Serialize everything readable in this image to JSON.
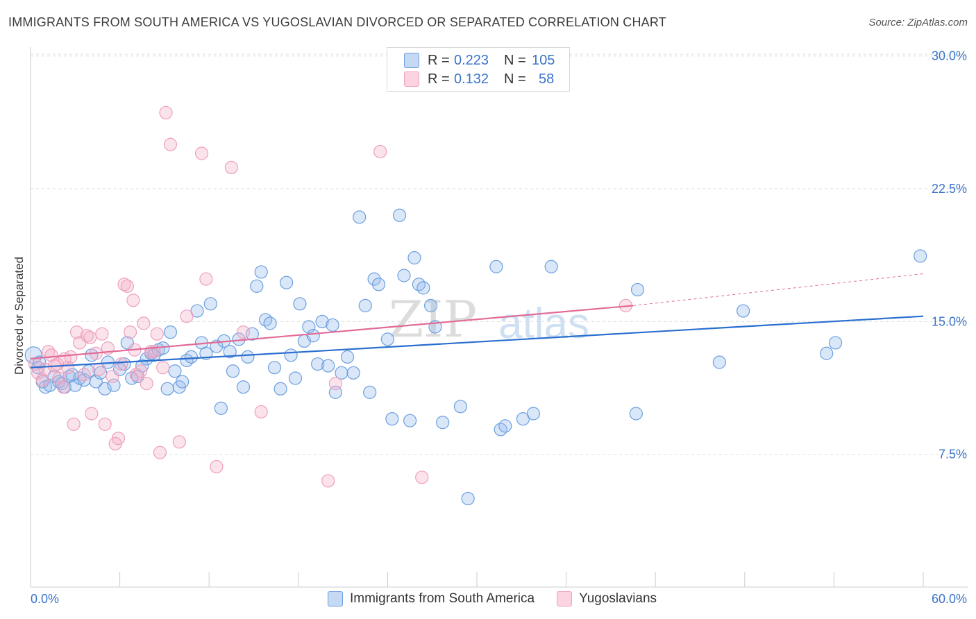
{
  "title": "IMMIGRANTS FROM SOUTH AMERICA VS YUGOSLAVIAN DIVORCED OR SEPARATED CORRELATION CHART",
  "source": "Source: ZipAtlas.com",
  "watermark": {
    "zip": "ZIP",
    "atlas": "atlas"
  },
  "legend": {
    "r_label": "R =",
    "n_label": "N =",
    "series1": {
      "r": "0.223",
      "n": "105",
      "color": "#6b9fe0"
    },
    "series2": {
      "r": "0.132",
      "n": "58",
      "color": "#f0a0bc"
    }
  },
  "colors": {
    "blue_line": "#2a6fcf",
    "pink_line": "#e26a96",
    "axis_text": "#3a73c9",
    "grid": "#dddddd"
  },
  "chart_data": {
    "type": "scatter",
    "xlabel": "",
    "ylabel": "Divorced or Separated",
    "xlim": [
      0,
      60
    ],
    "ylim": [
      0,
      31
    ],
    "x_ticks": [
      "0.0%",
      "60.0%"
    ],
    "y_ticks": [
      {
        "value": 7.5,
        "label": "7.5%"
      },
      {
        "value": 15.0,
        "label": "15.0%"
      },
      {
        "value": 22.5,
        "label": "22.5%"
      },
      {
        "value": 30.0,
        "label": "30.0%"
      }
    ],
    "grid": true,
    "series": [
      {
        "name": "Immigrants from South America",
        "color": "#6b9fe0",
        "trend": {
          "x0": 0,
          "y0": 12.4,
          "x1": 60,
          "y1": 15.3
        },
        "points": [
          [
            0.2,
            13.1
          ],
          [
            0.5,
            12.4
          ],
          [
            0.8,
            11.6
          ],
          [
            1.0,
            11.3
          ],
          [
            1.3,
            11.4
          ],
          [
            1.6,
            11.9
          ],
          [
            1.9,
            11.6
          ],
          [
            2.1,
            11.5
          ],
          [
            2.3,
            11.3
          ],
          [
            2.6,
            11.9
          ],
          [
            3.0,
            11.4
          ],
          [
            3.3,
            11.8
          ],
          [
            3.6,
            11.7
          ],
          [
            3.9,
            12.2
          ],
          [
            4.1,
            13.1
          ],
          [
            4.4,
            11.6
          ],
          [
            4.7,
            12.1
          ],
          [
            5.0,
            11.2
          ],
          [
            5.2,
            12.7
          ],
          [
            5.6,
            11.4
          ],
          [
            6.0,
            12.3
          ],
          [
            6.3,
            12.6
          ],
          [
            6.5,
            13.8
          ],
          [
            6.8,
            11.8
          ],
          [
            7.2,
            11.9
          ],
          [
            7.5,
            12.5
          ],
          [
            7.8,
            12.9
          ],
          [
            8.1,
            13.2
          ],
          [
            8.3,
            13.1
          ],
          [
            8.6,
            13.4
          ],
          [
            8.9,
            13.5
          ],
          [
            9.2,
            11.2
          ],
          [
            9.4,
            14.4
          ],
          [
            9.7,
            12.2
          ],
          [
            10.0,
            11.3
          ],
          [
            10.2,
            11.6
          ],
          [
            10.5,
            12.8
          ],
          [
            10.8,
            13.0
          ],
          [
            11.2,
            15.6
          ],
          [
            11.5,
            13.8
          ],
          [
            11.8,
            13.2
          ],
          [
            12.1,
            16.0
          ],
          [
            12.5,
            13.6
          ],
          [
            12.8,
            10.1
          ],
          [
            13.0,
            13.9
          ],
          [
            13.4,
            13.3
          ],
          [
            13.6,
            12.2
          ],
          [
            14.0,
            14.0
          ],
          [
            14.3,
            11.3
          ],
          [
            14.6,
            13.0
          ],
          [
            14.9,
            14.3
          ],
          [
            15.2,
            17.0
          ],
          [
            15.5,
            17.8
          ],
          [
            15.8,
            15.1
          ],
          [
            16.1,
            14.9
          ],
          [
            16.4,
            12.4
          ],
          [
            16.8,
            11.2
          ],
          [
            17.2,
            17.2
          ],
          [
            17.5,
            13.1
          ],
          [
            17.8,
            11.8
          ],
          [
            18.1,
            16.0
          ],
          [
            18.4,
            13.9
          ],
          [
            18.7,
            14.7
          ],
          [
            19.0,
            14.2
          ],
          [
            19.3,
            12.6
          ],
          [
            19.6,
            15.0
          ],
          [
            20.0,
            12.5
          ],
          [
            20.3,
            14.8
          ],
          [
            20.5,
            11.0
          ],
          [
            20.9,
            12.1
          ],
          [
            21.3,
            13.0
          ],
          [
            21.7,
            12.1
          ],
          [
            22.1,
            20.9
          ],
          [
            22.5,
            15.9
          ],
          [
            22.8,
            11.0
          ],
          [
            23.1,
            17.4
          ],
          [
            23.4,
            17.1
          ],
          [
            24.0,
            14.0
          ],
          [
            24.3,
            9.5
          ],
          [
            24.8,
            21.0
          ],
          [
            25.1,
            17.6
          ],
          [
            25.5,
            9.4
          ],
          [
            25.8,
            18.6
          ],
          [
            26.1,
            17.1
          ],
          [
            26.4,
            16.9
          ],
          [
            26.9,
            15.9
          ],
          [
            27.2,
            14.7
          ],
          [
            27.7,
            9.3
          ],
          [
            28.9,
            10.2
          ],
          [
            29.4,
            5.0
          ],
          [
            31.3,
            18.1
          ],
          [
            31.6,
            8.9
          ],
          [
            31.9,
            9.1
          ],
          [
            33.1,
            9.5
          ],
          [
            33.8,
            9.8
          ],
          [
            35.0,
            18.1
          ],
          [
            40.7,
            9.8
          ],
          [
            40.8,
            16.8
          ],
          [
            46.3,
            12.7
          ],
          [
            47.9,
            15.6
          ],
          [
            53.5,
            13.2
          ],
          [
            54.1,
            13.8
          ],
          [
            59.8,
            18.7
          ],
          [
            0.6,
            12.7
          ],
          [
            2.8,
            12.0
          ]
        ]
      },
      {
        "name": "Yugoslavians",
        "color": "#f0a0bc",
        "trend": {
          "x0": 0,
          "y0": 12.9,
          "x1": 40.5,
          "y1": 15.9,
          "dash_to_x": 60,
          "dash_to_y": 17.7
        },
        "points": [
          [
            0.3,
            12.6
          ],
          [
            0.5,
            12.1
          ],
          [
            0.8,
            11.7
          ],
          [
            1.0,
            12.3
          ],
          [
            1.2,
            13.3
          ],
          [
            1.4,
            13.1
          ],
          [
            1.6,
            12.5
          ],
          [
            1.9,
            11.8
          ],
          [
            2.2,
            11.3
          ],
          [
            2.5,
            12.4
          ],
          [
            2.7,
            13.0
          ],
          [
            2.9,
            9.2
          ],
          [
            3.1,
            14.4
          ],
          [
            3.3,
            13.8
          ],
          [
            3.6,
            12.0
          ],
          [
            3.8,
            14.2
          ],
          [
            4.0,
            14.1
          ],
          [
            4.1,
            9.8
          ],
          [
            4.6,
            12.3
          ],
          [
            4.8,
            14.3
          ],
          [
            5.0,
            9.2
          ],
          [
            5.2,
            13.5
          ],
          [
            5.5,
            11.9
          ],
          [
            5.7,
            8.1
          ],
          [
            5.9,
            8.4
          ],
          [
            6.1,
            12.6
          ],
          [
            6.3,
            17.1
          ],
          [
            6.5,
            17.0
          ],
          [
            6.7,
            14.4
          ],
          [
            6.9,
            16.2
          ],
          [
            7.1,
            12.0
          ],
          [
            7.4,
            12.2
          ],
          [
            7.6,
            14.9
          ],
          [
            7.8,
            11.5
          ],
          [
            8.1,
            13.3
          ],
          [
            8.3,
            13.3
          ],
          [
            8.5,
            14.3
          ],
          [
            8.7,
            7.6
          ],
          [
            8.9,
            12.4
          ],
          [
            9.1,
            26.8
          ],
          [
            9.4,
            25.0
          ],
          [
            10.0,
            8.2
          ],
          [
            10.5,
            15.3
          ],
          [
            11.5,
            24.5
          ],
          [
            11.8,
            17.4
          ],
          [
            12.5,
            6.8
          ],
          [
            13.5,
            23.7
          ],
          [
            14.3,
            14.4
          ],
          [
            15.5,
            9.9
          ],
          [
            20.0,
            6.0
          ],
          [
            20.5,
            11.5
          ],
          [
            23.5,
            24.6
          ],
          [
            26.3,
            6.2
          ],
          [
            40.0,
            15.9
          ],
          [
            1.8,
            12.6
          ],
          [
            2.3,
            12.9
          ],
          [
            4.4,
            13.2
          ],
          [
            7.0,
            13.4
          ]
        ]
      }
    ]
  }
}
